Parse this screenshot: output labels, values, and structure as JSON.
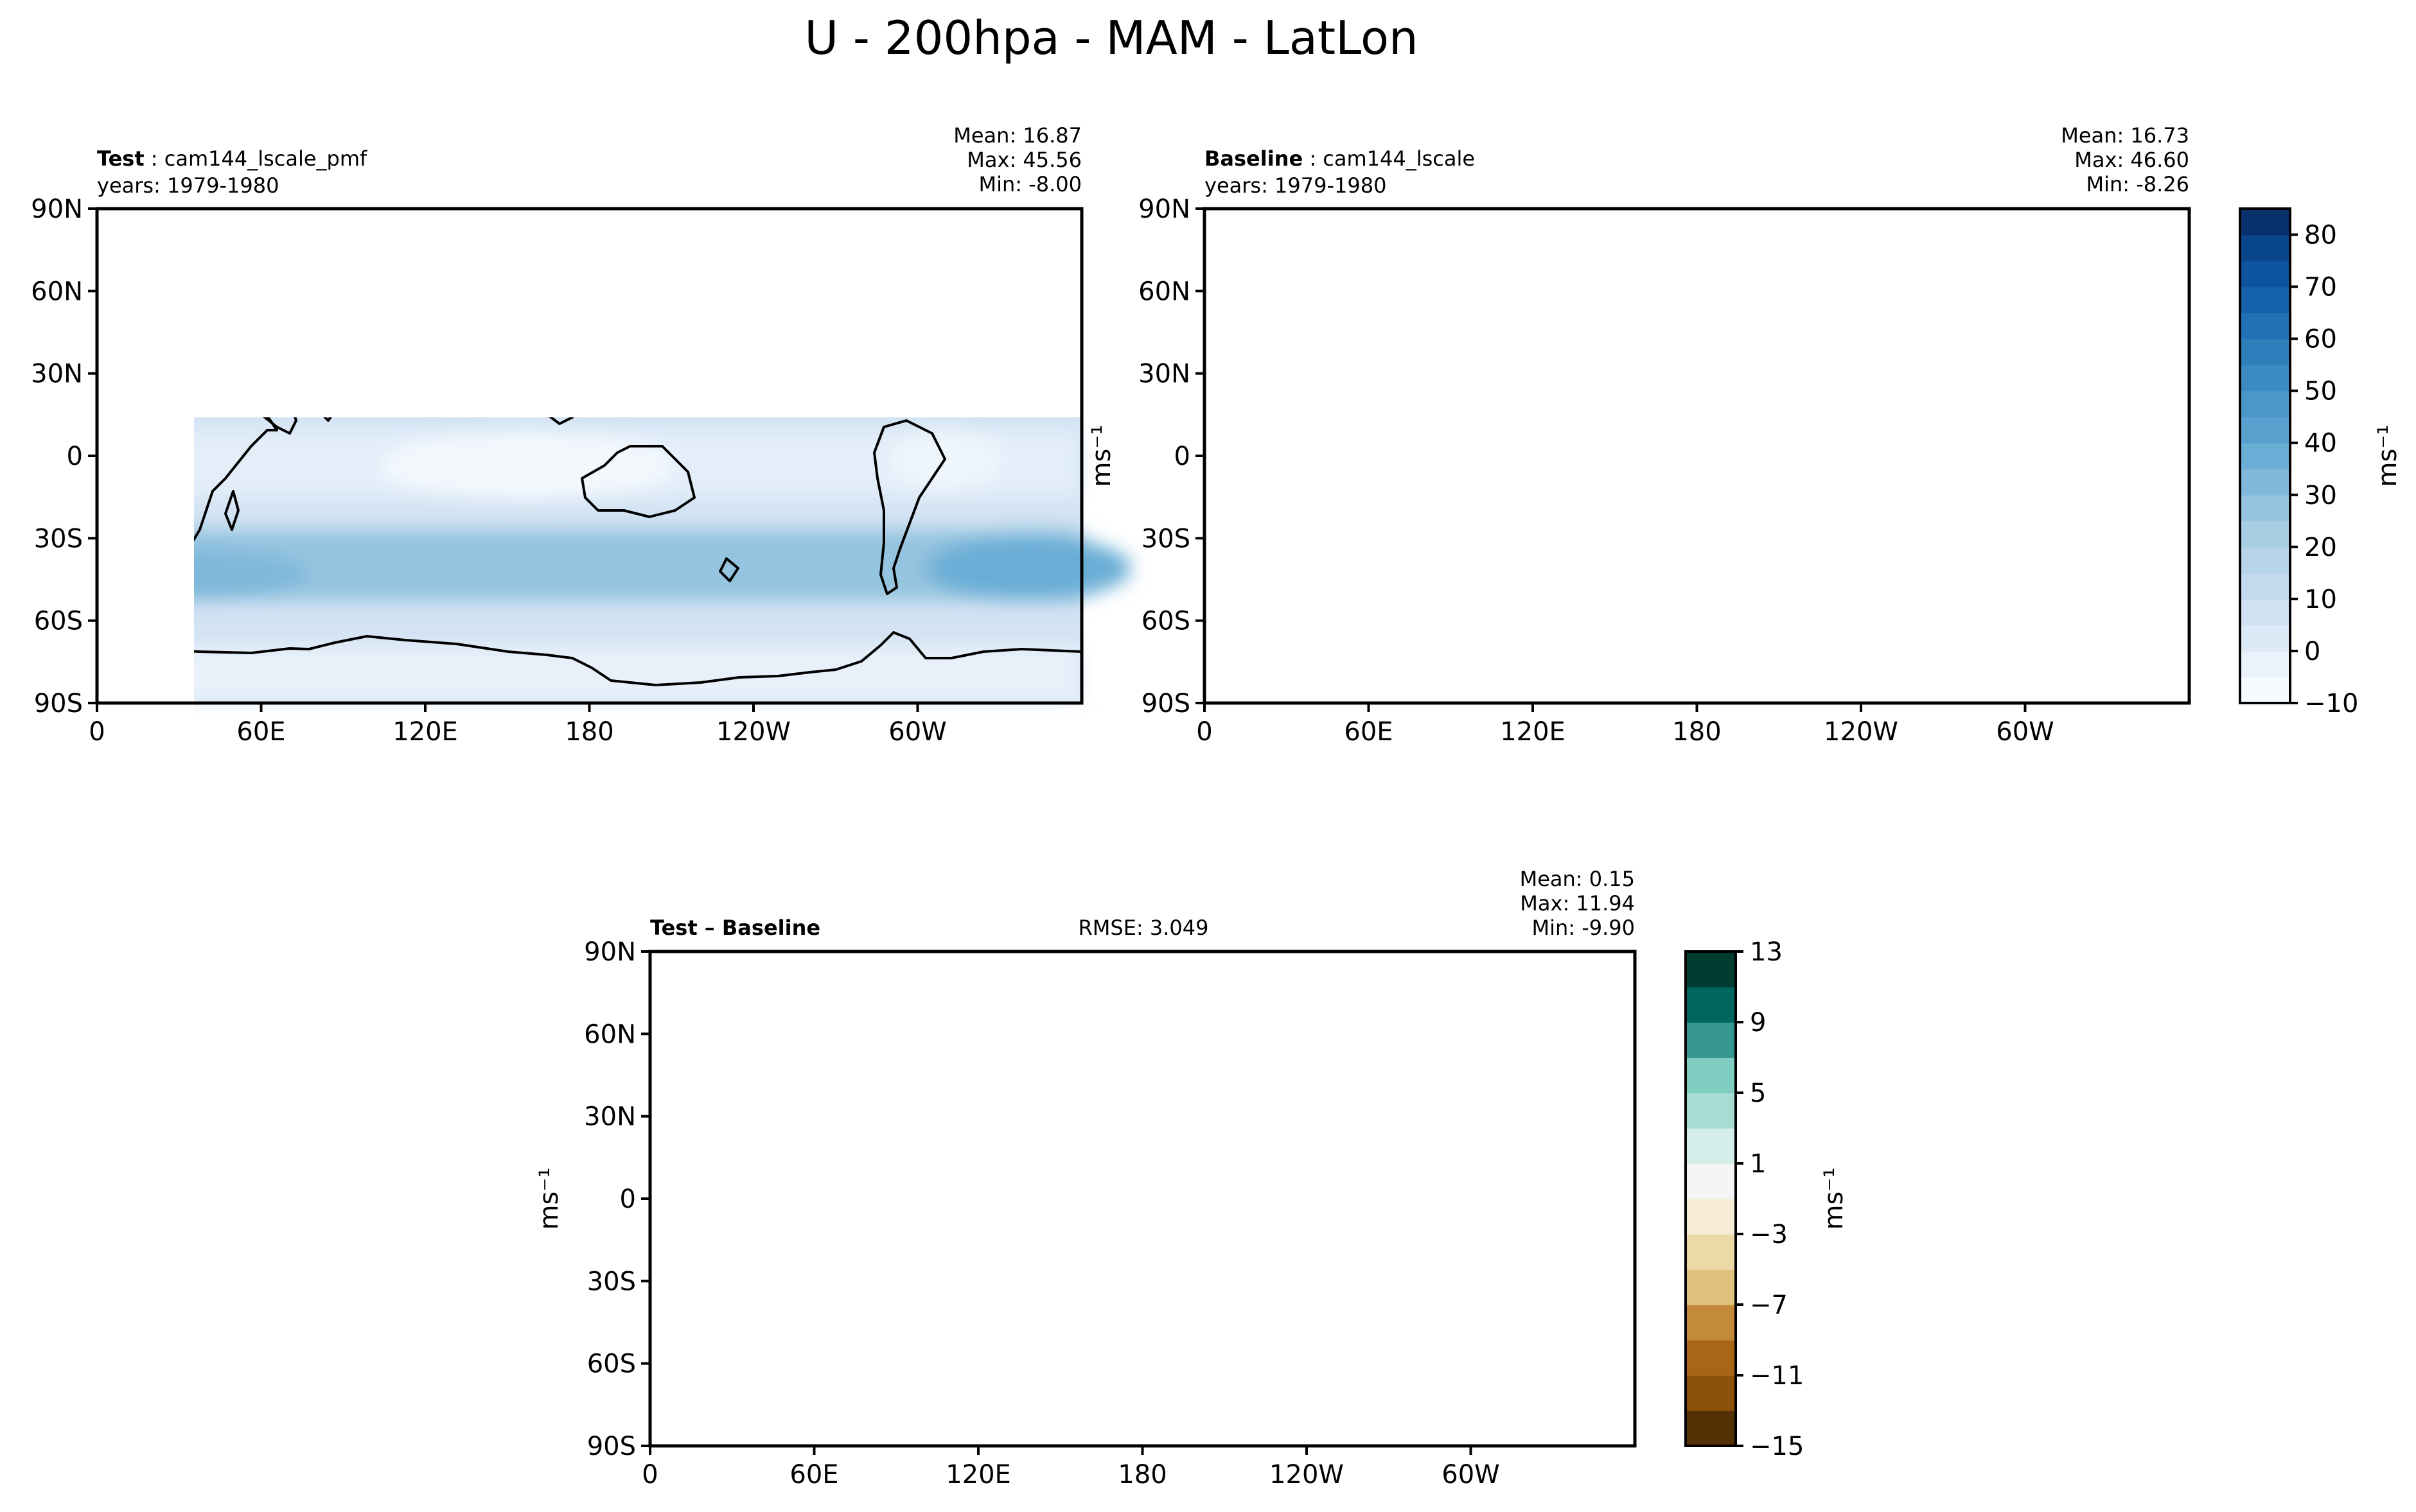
{
  "figure_title": "U - 200hpa - MAM - LatLon",
  "colors": {
    "sequential": [
      "#f7fbff",
      "#eaf2fb",
      "#dce9f6",
      "#d0e1f2",
      "#c4d9ee",
      "#b7d4ea",
      "#a8cee4",
      "#94c4df",
      "#7fb8da",
      "#6aaed6",
      "#58a1cf",
      "#4a98c9",
      "#3b8bc2",
      "#2e7ebc",
      "#2270b5",
      "#1662aa",
      "#0d539e",
      "#08458a",
      "#08306b"
    ],
    "diverging": [
      "#543005",
      "#8c510a",
      "#a86616",
      "#c48a3c",
      "#dfc27d",
      "#ecd9a8",
      "#f6ecd5",
      "#f5f5f5",
      "#f5f5f5",
      "#d5eeea",
      "#a8dcd3",
      "#80cdc1",
      "#35978f",
      "#01665e",
      "#003c30"
    ]
  },
  "chart_data": [
    {
      "type": "heatmap",
      "id": "test",
      "label_bold": "Test",
      "label_rest": "cam144_lscale_pmf",
      "years": "years: 1979-1980",
      "stats": [
        "Mean: 16.87",
        "Max: 45.56",
        "Min: -8.00"
      ],
      "xticks": [
        "0",
        "60E",
        "120E",
        "180",
        "120W",
        "60W"
      ],
      "xtick_lons": [
        0,
        60,
        120,
        180,
        240,
        300
      ],
      "yticks": [
        "90N",
        "60N",
        "30N",
        "0",
        "30S",
        "60S",
        "90S"
      ],
      "ytick_lats": [
        90,
        60,
        30,
        0,
        -30,
        -60,
        -90
      ],
      "xlim": [
        0,
        360
      ],
      "ylim": [
        -90,
        90
      ],
      "units": "ms⁻¹",
      "mean": 16.87,
      "max": 45.56,
      "min": -8.0
    },
    {
      "type": "heatmap",
      "id": "baseline",
      "label_bold": "Baseline",
      "label_rest": "cam144_lscale",
      "years": "years: 1979-1980",
      "stats": [
        "Mean: 16.73",
        "Max: 46.60",
        "Min: -8.26"
      ],
      "xticks": [
        "0",
        "60E",
        "120E",
        "180",
        "120W",
        "60W"
      ],
      "xtick_lons": [
        0,
        60,
        120,
        180,
        240,
        300
      ],
      "yticks": [
        "90N",
        "60N",
        "30N",
        "0",
        "30S",
        "60S",
        "90S"
      ],
      "ytick_lats": [
        90,
        60,
        30,
        0,
        -30,
        -60,
        -90
      ],
      "xlim": [
        0,
        360
      ],
      "ylim": [
        -90,
        90
      ],
      "ylabel": "ms⁻¹",
      "units": "ms⁻¹",
      "mean": 16.73,
      "max": 46.6,
      "min": -8.26
    },
    {
      "type": "heatmap",
      "id": "diff",
      "label_bold": "Test – Baseline",
      "rmse": "RMSE: 3.049",
      "stats": [
        "Mean:  0.15",
        "Max: 11.94",
        "Min: -9.90"
      ],
      "xticks": [
        "0",
        "60E",
        "120E",
        "180",
        "120W",
        "60W"
      ],
      "xtick_lons": [
        0,
        60,
        120,
        180,
        240,
        300
      ],
      "yticks": [
        "90N",
        "60N",
        "30N",
        "0",
        "30S",
        "60S",
        "90S"
      ],
      "ytick_lats": [
        90,
        60,
        30,
        0,
        -30,
        -60,
        -90
      ],
      "xlim": [
        0,
        360
      ],
      "ylim": [
        -90,
        90
      ],
      "ylabel": "ms⁻¹",
      "units": "ms⁻¹",
      "mean": 0.15,
      "max": 11.94,
      "min": -9.9
    }
  ],
  "colorbars": {
    "main": {
      "levels": [
        -10,
        -5,
        0,
        5,
        10,
        15,
        20,
        25,
        30,
        35,
        40,
        45,
        50,
        55,
        60,
        65,
        70,
        75,
        80,
        85
      ],
      "tick_values": [
        -10,
        0,
        10,
        20,
        30,
        40,
        50,
        60,
        70,
        80
      ],
      "tick_labels": [
        "−10",
        "0",
        "10",
        "20",
        "30",
        "40",
        "50",
        "60",
        "70",
        "80"
      ],
      "label": "ms⁻¹"
    },
    "diff": {
      "levels": [
        -15,
        -13,
        -11,
        -9,
        -7,
        -5,
        -3,
        -1,
        1,
        3,
        5,
        7,
        9,
        11,
        13
      ],
      "tick_values": [
        -15,
        -11,
        -7,
        -3,
        1,
        5,
        9,
        13
      ],
      "tick_labels": [
        "−15",
        "−11",
        "−7",
        "−3",
        "1",
        "5",
        "9",
        "13"
      ],
      "label": "ms⁻¹"
    }
  }
}
